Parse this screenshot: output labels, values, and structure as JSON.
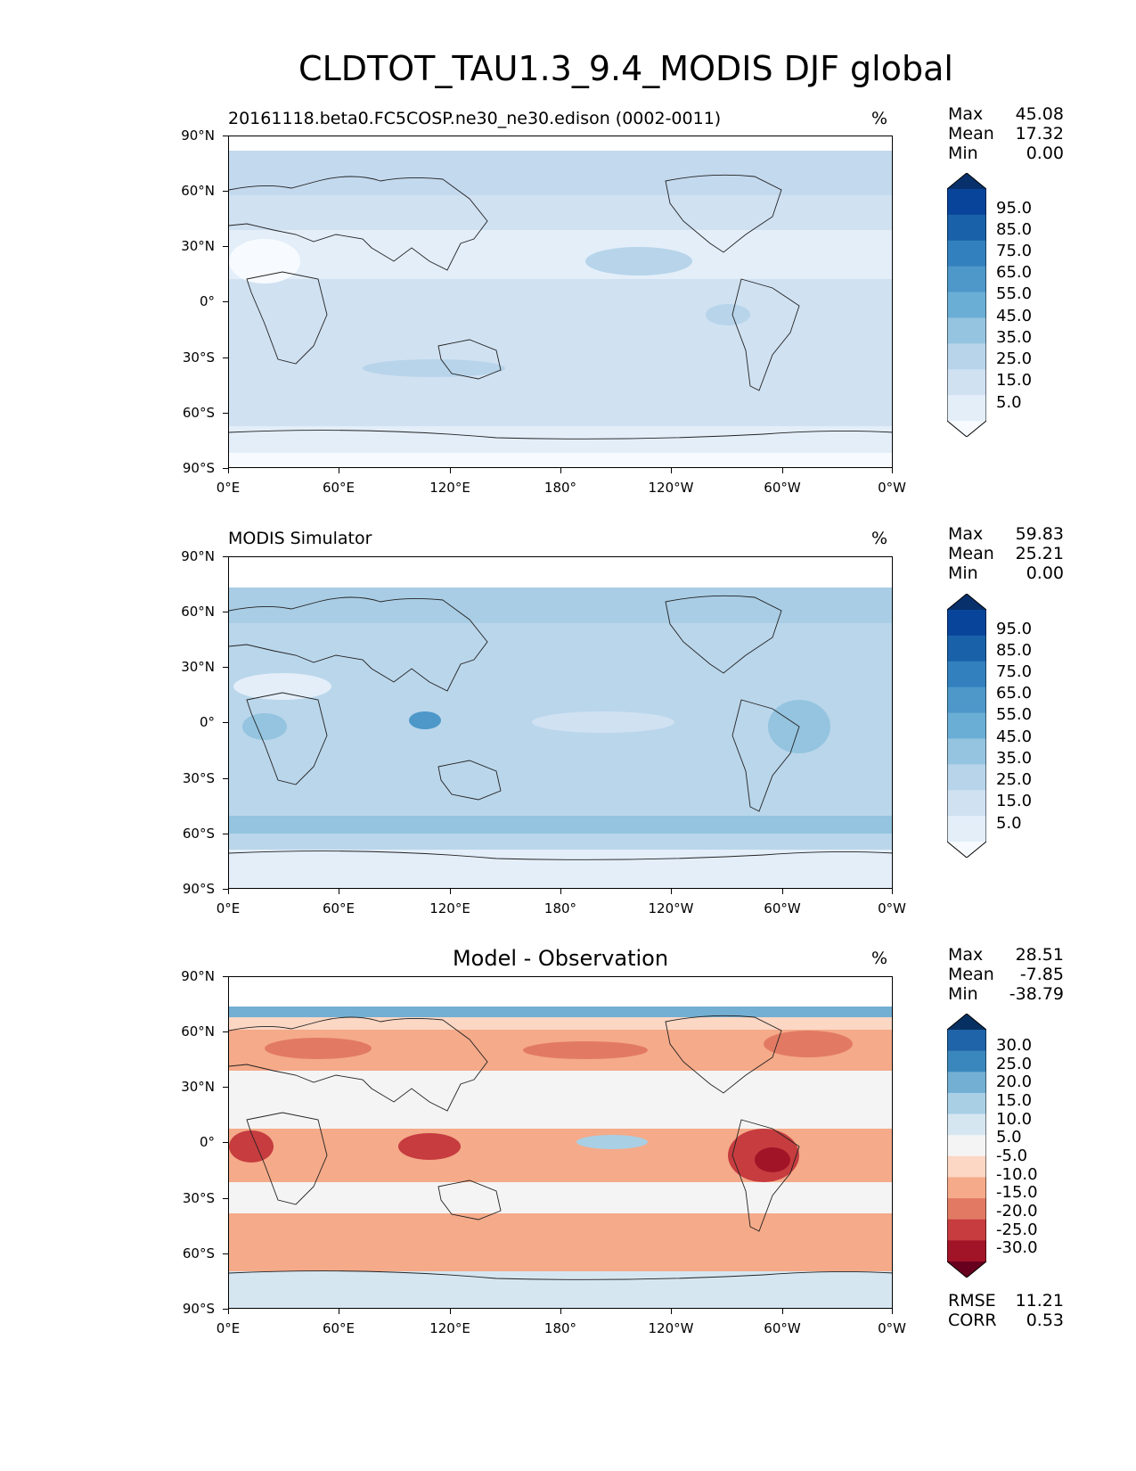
{
  "figure": {
    "title": "CLDTOT_TAU1.3_9.4_MODIS DJF global"
  },
  "axes": {
    "lat_labels": [
      "90°N",
      "60°N",
      "30°N",
      "0°",
      "30°S",
      "60°S",
      "90°S"
    ],
    "lon_labels": [
      "0°E",
      "60°E",
      "120°E",
      "180°",
      "120°W",
      "60°W",
      "0°W"
    ]
  },
  "panels": [
    {
      "title": "20161118.beta0.FC5COSP.ne30_ne30.edison (0002-0011)",
      "units": "%",
      "stats": [
        {
          "label": "Max",
          "value": "45.08"
        },
        {
          "label": "Mean",
          "value": "17.32"
        },
        {
          "label": "Min",
          "value": "0.00"
        }
      ],
      "colorbar_labels": [
        "95.0",
        "85.0",
        "75.0",
        "65.0",
        "55.0",
        "45.0",
        "35.0",
        "25.0",
        "15.0",
        "5.0"
      ],
      "colorbar_colors": [
        "#08306b",
        "#08459a",
        "#1962a9",
        "#3280bd",
        "#4d97c9",
        "#6aaed6",
        "#94c4df",
        "#b7d4ea",
        "#d0e1f2",
        "#e3eef9",
        "#f7fbff"
      ],
      "base_color": "#d0e1f2"
    },
    {
      "title": "MODIS Simulator",
      "units": "%",
      "stats": [
        {
          "label": "Max",
          "value": "59.83"
        },
        {
          "label": "Mean",
          "value": "25.21"
        },
        {
          "label": "Min",
          "value": "0.00"
        }
      ],
      "colorbar_labels": [
        "95.0",
        "85.0",
        "75.0",
        "65.0",
        "55.0",
        "45.0",
        "35.0",
        "25.0",
        "15.0",
        "5.0"
      ],
      "colorbar_colors": [
        "#08306b",
        "#08459a",
        "#1962a9",
        "#3280bd",
        "#4d97c9",
        "#6aaed6",
        "#94c4df",
        "#b7d4ea",
        "#d0e1f2",
        "#e3eef9",
        "#f7fbff"
      ],
      "base_color": "#bad6eb"
    },
    {
      "title": "Model - Observation",
      "units": "%",
      "stats": [
        {
          "label": "Max",
          "value": "28.51"
        },
        {
          "label": "Mean",
          "value": "-7.85"
        },
        {
          "label": "Min",
          "value": "-38.79"
        }
      ],
      "colorbar_labels": [
        "30.0",
        "25.0",
        "20.0",
        "15.0",
        "10.0",
        "5.0",
        "-5.0",
        "-10.0",
        "-15.0",
        "-20.0",
        "-25.0",
        "-30.0"
      ],
      "colorbar_colors": [
        "#053061",
        "#1f63a8",
        "#3a87bd",
        "#72afd3",
        "#a9cfe5",
        "#d6e6f1",
        "#f4f4f4",
        "#fbd7c4",
        "#f5aa89",
        "#e27a63",
        "#c63c3f",
        "#a11428",
        "#67001f"
      ],
      "base_color": "#f4f4f4",
      "footer": [
        {
          "label": "RMSE",
          "value": "11.21"
        },
        {
          "label": "CORR",
          "value": "0.53"
        }
      ]
    }
  ]
}
